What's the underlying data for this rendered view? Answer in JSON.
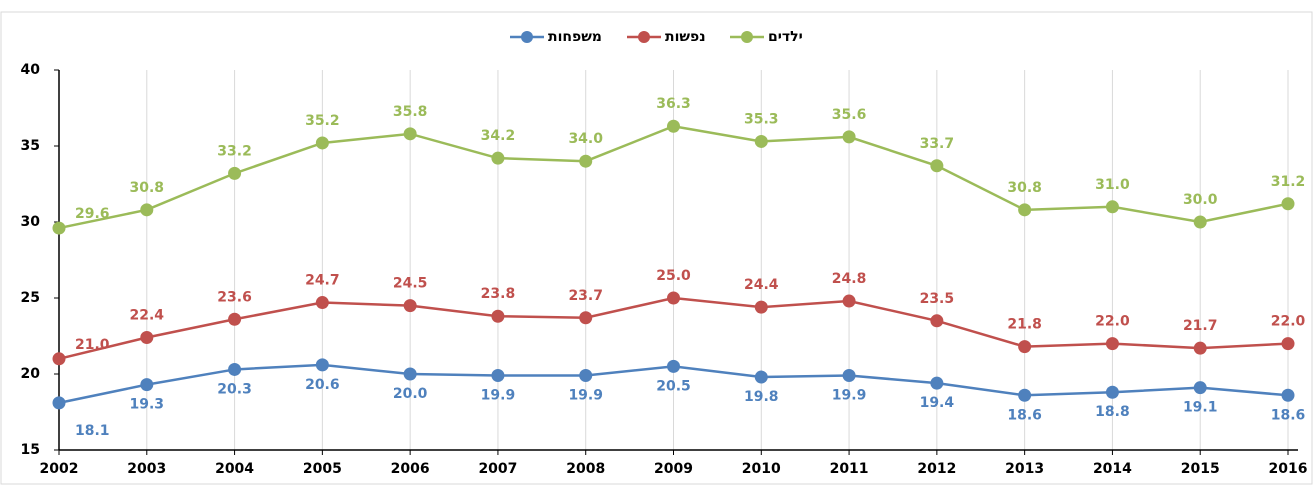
{
  "chart_data": {
    "type": "line",
    "categories": [
      "2002",
      "2003",
      "2004",
      "2005",
      "2006",
      "2007",
      "2008",
      "2009",
      "2010",
      "2011",
      "2012",
      "2013",
      "2014",
      "2015",
      "2016"
    ],
    "series": [
      {
        "name": "משפחות",
        "color": "#4f81bd",
        "values": [
          18.1,
          19.3,
          20.3,
          20.6,
          20.0,
          19.9,
          19.9,
          20.5,
          19.8,
          19.9,
          19.4,
          18.6,
          18.8,
          19.1,
          18.6
        ],
        "value_labels": [
          "18.1",
          "19.3",
          "20.3",
          "20.6",
          "20.0",
          "19.9",
          "19.9",
          "20.5",
          "19.8",
          "19.9",
          "19.4",
          "18.6",
          "18.8",
          "19.1",
          "18.6"
        ]
      },
      {
        "name": "נפשות",
        "color": "#c0504d",
        "values": [
          21.0,
          22.4,
          23.6,
          24.7,
          24.5,
          23.8,
          23.7,
          25.0,
          24.4,
          24.8,
          23.5,
          21.8,
          22.0,
          21.7,
          22.0
        ],
        "value_labels": [
          "21.0",
          "22.4",
          "23.6",
          "24.7",
          "24.5",
          "23.8",
          "23.7",
          "25.0",
          "24.4",
          "24.8",
          "23.5",
          "21.8",
          "22.0",
          "21.7",
          "22.0"
        ]
      },
      {
        "name": "ילדים",
        "color": "#9bbb59",
        "values": [
          29.6,
          30.8,
          33.2,
          35.2,
          35.8,
          34.2,
          34.0,
          36.3,
          35.3,
          35.6,
          33.7,
          30.8,
          31.0,
          30.0,
          31.2
        ],
        "value_labels": [
          "29.6",
          "30.8",
          "33.2",
          "35.2",
          "35.8",
          "34.2",
          "34.0",
          "36.3",
          "35.3",
          "35.6",
          "33.7",
          "30.8",
          "31.0",
          "30.0",
          "31.2"
        ]
      }
    ],
    "ylim": [
      15,
      40
    ],
    "yticks": [
      15,
      20,
      25,
      30,
      35,
      40
    ],
    "grid": true,
    "legend": "top"
  }
}
